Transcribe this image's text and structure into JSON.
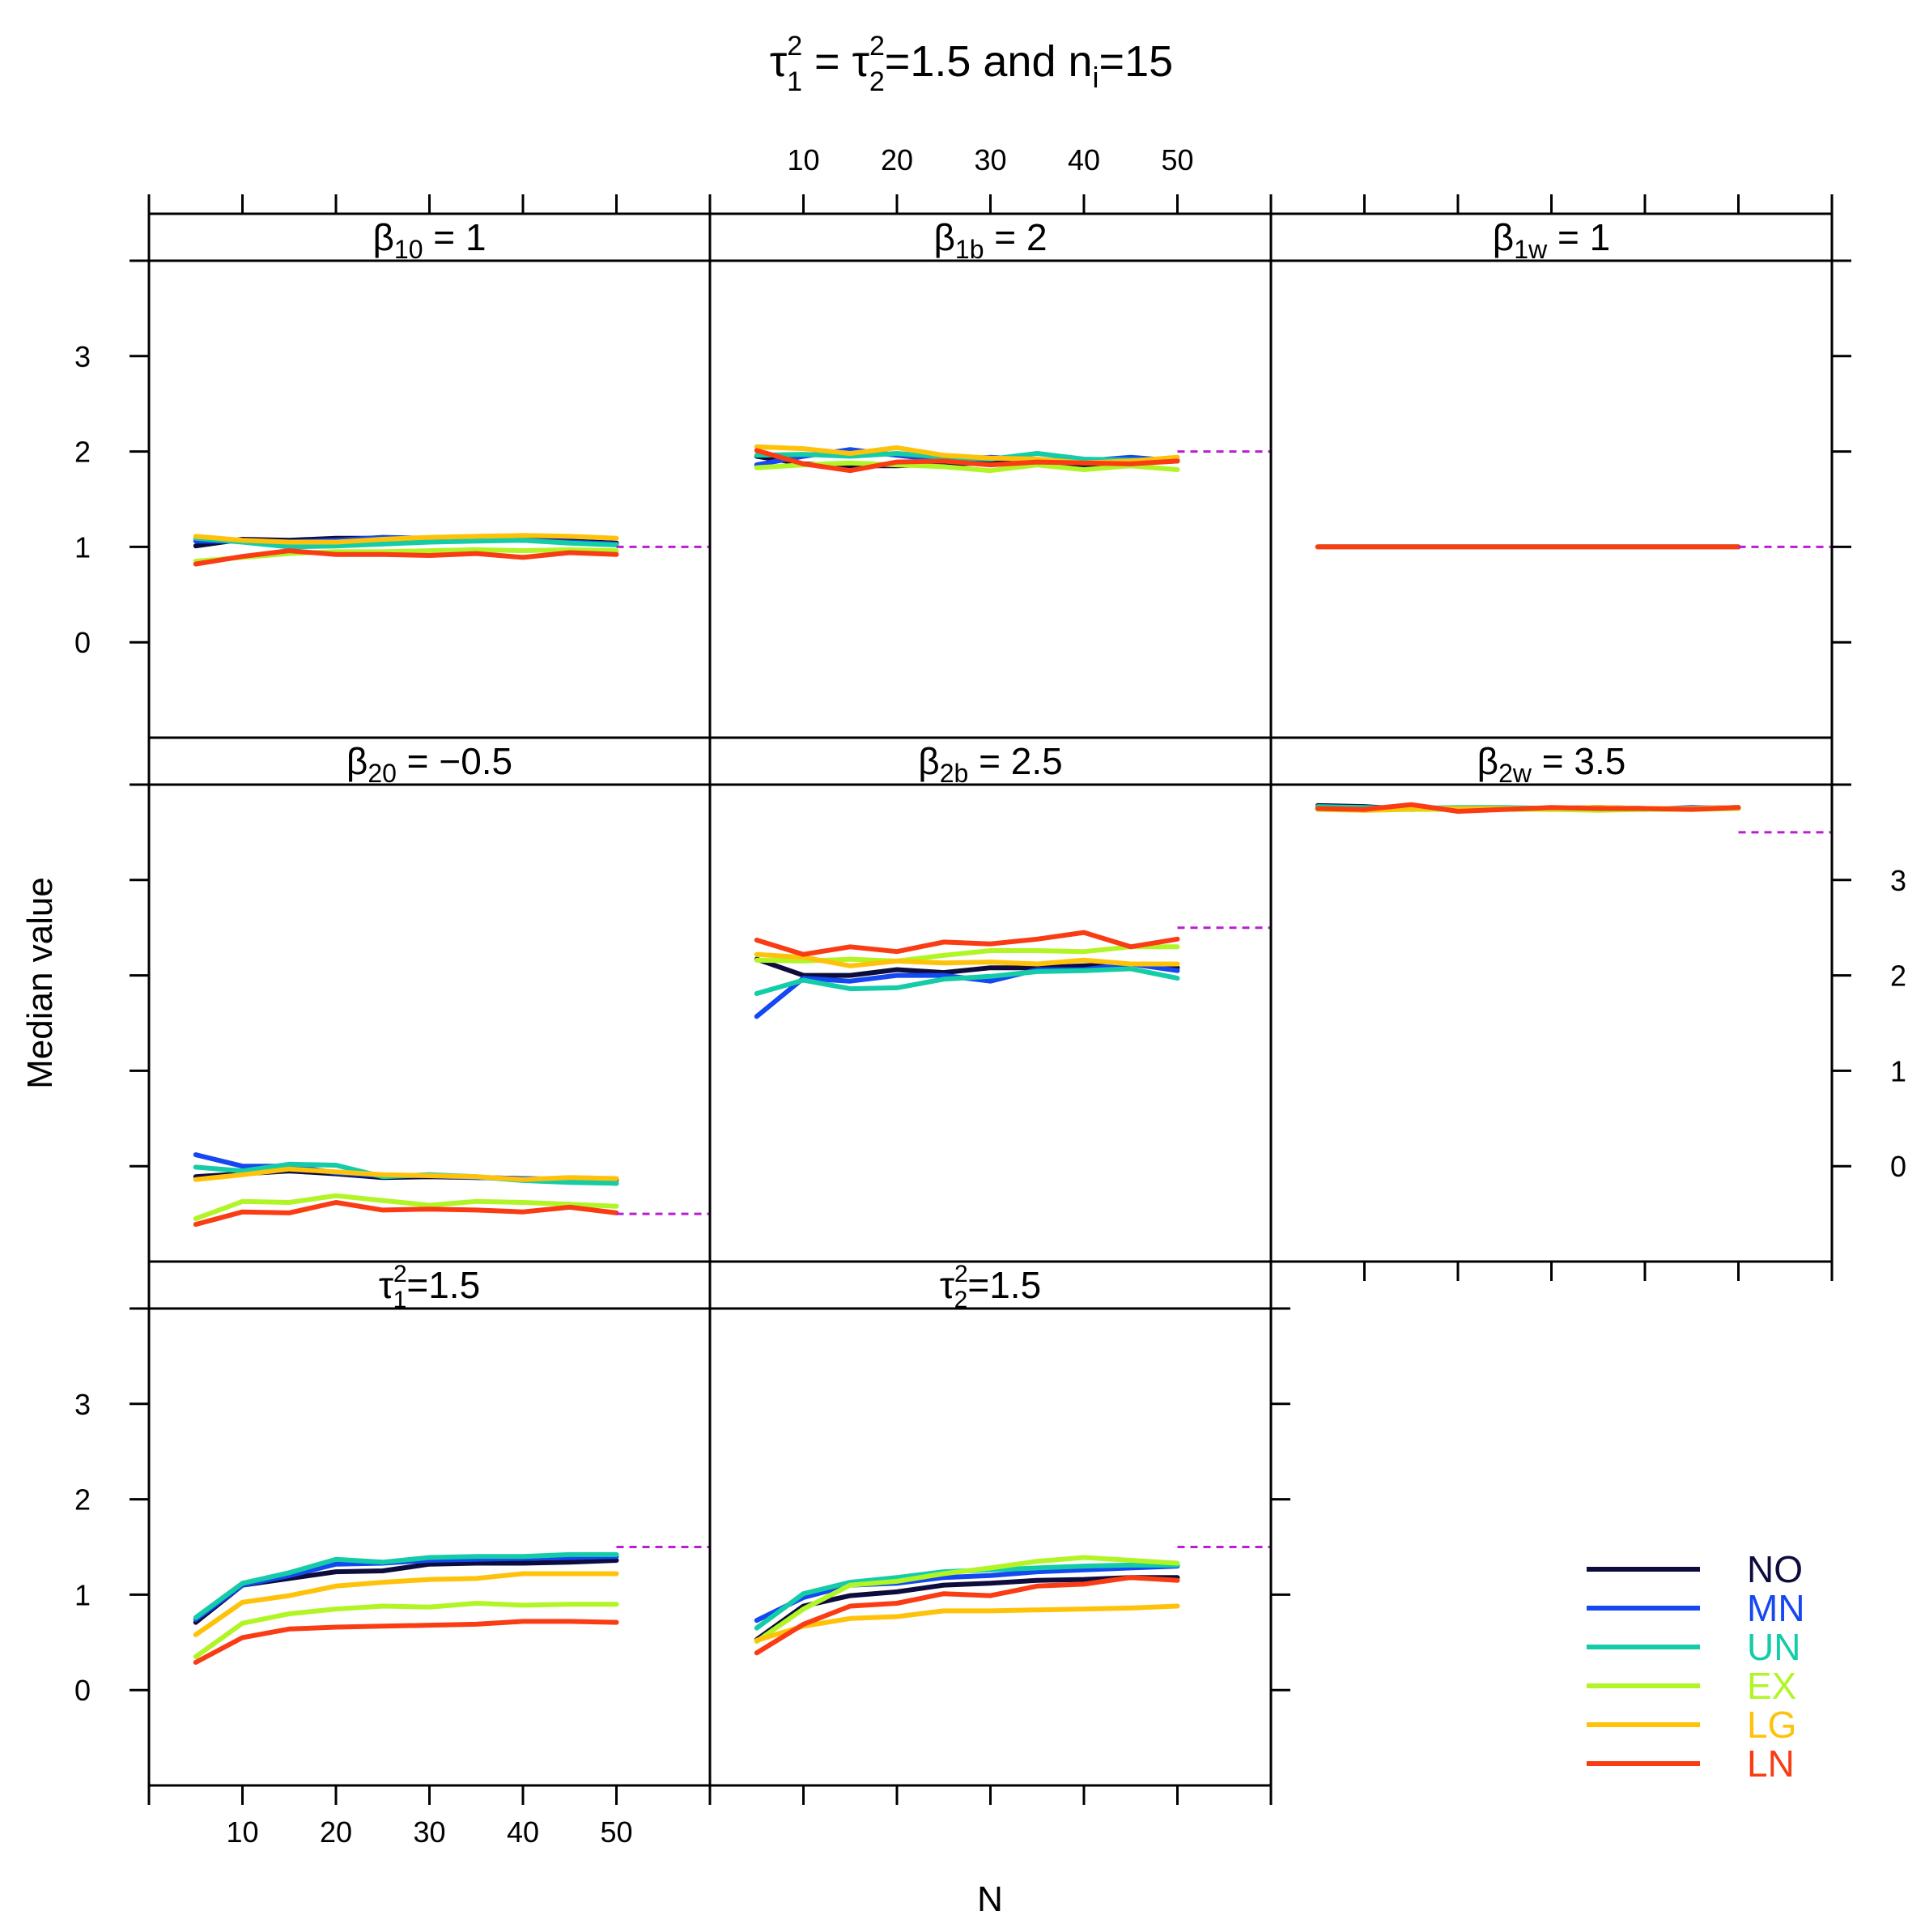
{
  "chart_data": {
    "type": "line",
    "title": {
      "pre1": "τ",
      "sup1": "2",
      "sub1": "1",
      "mid1": " = ",
      "pre2": "τ",
      "sup2": "2",
      "sub2": "2",
      "mid2": "=1.5 and n",
      "sub3": "i",
      "post": "=15"
    },
    "xlabel": "N",
    "ylabel": "Median value",
    "xlim": [
      0,
      60
    ],
    "ylim": [
      -1,
      4
    ],
    "xticks": [
      10,
      20,
      30,
      40,
      50
    ],
    "yticks": [
      0,
      1,
      2,
      3
    ],
    "x": [
      5,
      10,
      15,
      20,
      25,
      30,
      35,
      40,
      45,
      50
    ],
    "reference_line_color": "#b91fd0",
    "legend_position": "bottom-right",
    "legend": [
      {
        "name": "NO",
        "color": "#0d0c3d"
      },
      {
        "name": "MN",
        "color": "#1548f0"
      },
      {
        "name": "UN",
        "color": "#14cca8"
      },
      {
        "name": "EX",
        "color": "#b2f527"
      },
      {
        "name": "LG",
        "color": "#ffc20a"
      },
      {
        "name": "LN",
        "color": "#fa3c14"
      }
    ],
    "panels": [
      {
        "id": "b10",
        "label": {
          "pre": "β",
          "sub": "10",
          "post": " = 1"
        },
        "true_value": 1,
        "series": [
          {
            "name": "NO",
            "values": [
              1.01,
              1.08,
              1.07,
              1.09,
              1.09,
              1.08,
              1.07,
              1.08,
              1.06,
              1.04
            ]
          },
          {
            "name": "MN",
            "values": [
              1.06,
              1.06,
              1.05,
              1.07,
              1.1,
              1.09,
              1.08,
              1.07,
              1.05,
              1.03
            ]
          },
          {
            "name": "UN",
            "values": [
              1.09,
              1.05,
              1.0,
              1.01,
              1.03,
              1.05,
              1.06,
              1.07,
              1.04,
              1.02
            ]
          },
          {
            "name": "EX",
            "values": [
              0.85,
              0.89,
              0.93,
              0.95,
              0.95,
              0.96,
              0.97,
              0.96,
              0.97,
              0.96
            ]
          },
          {
            "name": "LG",
            "values": [
              1.11,
              1.07,
              1.05,
              1.05,
              1.08,
              1.1,
              1.11,
              1.12,
              1.11,
              1.09
            ]
          },
          {
            "name": "LN",
            "values": [
              0.82,
              0.9,
              0.96,
              0.92,
              0.92,
              0.91,
              0.93,
              0.89,
              0.94,
              0.92
            ]
          }
        ]
      },
      {
        "id": "b1b",
        "label": {
          "pre": "β",
          "sub": "1b",
          "post": " = 2"
        },
        "true_value": 2,
        "series": [
          {
            "name": "NO",
            "values": [
              1.95,
              1.87,
              1.85,
              1.85,
              1.87,
              1.88,
              1.9,
              1.86,
              1.88,
              1.9
            ]
          },
          {
            "name": "MN",
            "values": [
              1.86,
              1.95,
              2.02,
              1.96,
              1.91,
              1.94,
              1.91,
              1.9,
              1.94,
              1.9
            ]
          },
          {
            "name": "UN",
            "values": [
              1.96,
              1.97,
              1.95,
              1.98,
              1.94,
              1.92,
              1.98,
              1.92,
              1.91,
              1.91
            ]
          },
          {
            "name": "EX",
            "values": [
              1.83,
              1.86,
              1.88,
              1.86,
              1.84,
              1.8,
              1.86,
              1.81,
              1.85,
              1.81
            ]
          },
          {
            "name": "LG",
            "values": [
              2.05,
              2.03,
              1.98,
              2.04,
              1.96,
              1.93,
              1.92,
              1.88,
              1.9,
              1.94
            ]
          },
          {
            "name": "LN",
            "values": [
              2.01,
              1.87,
              1.8,
              1.89,
              1.9,
              1.86,
              1.89,
              1.88,
              1.87,
              1.9
            ]
          }
        ]
      },
      {
        "id": "b1w",
        "label": {
          "pre": "β",
          "sub": "1w",
          "post": " = 1"
        },
        "true_value": 1,
        "series": [
          {
            "name": "NO",
            "values": [
              1,
              1,
              1,
              1,
              1,
              1,
              1,
              1,
              1,
              1
            ]
          },
          {
            "name": "MN",
            "values": [
              1,
              1,
              1,
              1,
              1,
              1,
              1,
              1,
              1,
              1
            ]
          },
          {
            "name": "UN",
            "values": [
              1,
              1,
              1,
              1,
              1,
              1,
              1,
              1,
              1,
              1
            ]
          },
          {
            "name": "EX",
            "values": [
              1,
              1,
              1,
              1,
              1,
              1,
              1,
              1,
              1,
              1
            ]
          },
          {
            "name": "LG",
            "values": [
              1,
              1,
              1,
              1,
              1,
              1,
              1,
              1,
              1,
              1
            ]
          },
          {
            "name": "LN",
            "values": [
              1,
              1,
              1,
              1,
              1,
              1,
              1,
              1,
              1,
              1
            ]
          }
        ]
      },
      {
        "id": "b20",
        "label": {
          "pre": "β",
          "sub": "20",
          "post": " = −0.5"
        },
        "true_value": -0.5,
        "series": [
          {
            "name": "NO",
            "values": [
              -0.11,
              -0.08,
              -0.05,
              -0.08,
              -0.12,
              -0.11,
              -0.12,
              -0.13,
              -0.14,
              -0.14
            ]
          },
          {
            "name": "MN",
            "values": [
              0.12,
              0.0,
              0.0,
              -0.07,
              -0.1,
              -0.1,
              -0.12,
              -0.13,
              -0.14,
              -0.18
            ]
          },
          {
            "name": "UN",
            "values": [
              -0.01,
              -0.05,
              0.02,
              0.01,
              -0.11,
              -0.09,
              -0.11,
              -0.15,
              -0.17,
              -0.18
            ]
          },
          {
            "name": "EX",
            "values": [
              -0.55,
              -0.37,
              -0.38,
              -0.31,
              -0.36,
              -0.41,
              -0.37,
              -0.38,
              -0.4,
              -0.42
            ]
          },
          {
            "name": "LG",
            "values": [
              -0.14,
              -0.09,
              -0.03,
              -0.06,
              -0.09,
              -0.1,
              -0.11,
              -0.14,
              -0.12,
              -0.13
            ]
          },
          {
            "name": "LN",
            "values": [
              -0.61,
              -0.48,
              -0.49,
              -0.38,
              -0.46,
              -0.45,
              -0.46,
              -0.48,
              -0.43,
              -0.49
            ]
          }
        ]
      },
      {
        "id": "b2b",
        "label": {
          "pre": "β",
          "sub": "2b",
          "post": " = 2.5"
        },
        "true_value": 2.5,
        "series": [
          {
            "name": "NO",
            "values": [
              2.17,
              2.0,
              2.0,
              2.06,
              2.03,
              2.08,
              2.08,
              2.1,
              2.12,
              2.08
            ]
          },
          {
            "name": "MN",
            "values": [
              1.57,
              1.97,
              1.94,
              2.0,
              2.0,
              1.94,
              2.06,
              2.06,
              2.12,
              2.05
            ]
          },
          {
            "name": "UN",
            "values": [
              1.81,
              1.95,
              1.86,
              1.87,
              1.96,
              1.99,
              2.04,
              2.05,
              2.07,
              1.97
            ]
          },
          {
            "name": "EX",
            "values": [
              2.16,
              2.15,
              2.17,
              2.15,
              2.21,
              2.26,
              2.26,
              2.25,
              2.3,
              2.3
            ]
          },
          {
            "name": "LG",
            "values": [
              2.22,
              2.19,
              2.1,
              2.15,
              2.13,
              2.14,
              2.12,
              2.16,
              2.12,
              2.12
            ]
          },
          {
            "name": "LN",
            "values": [
              2.37,
              2.22,
              2.3,
              2.25,
              2.35,
              2.33,
              2.38,
              2.45,
              2.3,
              2.38
            ]
          }
        ]
      },
      {
        "id": "b2w",
        "label": {
          "pre": "β",
          "sub": "2w",
          "post": " = 3.5"
        },
        "true_value": 3.5,
        "series": [
          {
            "name": "NO",
            "values": [
              3.78,
              3.77,
              3.74,
              3.75,
              3.75,
              3.75,
              3.76,
              3.75,
              3.75,
              3.76
            ]
          },
          {
            "name": "MN",
            "values": [
              3.76,
              3.75,
              3.77,
              3.74,
              3.75,
              3.74,
              3.75,
              3.74,
              3.76,
              3.75
            ]
          },
          {
            "name": "UN",
            "values": [
              3.77,
              3.76,
              3.75,
              3.76,
              3.76,
              3.75,
              3.76,
              3.75,
              3.75,
              3.76
            ]
          },
          {
            "name": "EX",
            "values": [
              3.74,
              3.73,
              3.74,
              3.74,
              3.74,
              3.74,
              3.73,
              3.74,
              3.74,
              3.75
            ]
          },
          {
            "name": "LG",
            "values": [
              3.75,
              3.73,
              3.75,
              3.75,
              3.75,
              3.75,
              3.76,
              3.75,
              3.75,
              3.76
            ]
          },
          {
            "name": "LN",
            "values": [
              3.75,
              3.74,
              3.79,
              3.72,
              3.74,
              3.76,
              3.75,
              3.75,
              3.74,
              3.76
            ]
          }
        ]
      },
      {
        "id": "t1",
        "label": {
          "pre": "τ",
          "sup": "2",
          "sub": "1",
          "post": "=1.5"
        },
        "true_value": 1.5,
        "series": [
          {
            "name": "NO",
            "values": [
              0.71,
              1.1,
              1.17,
              1.24,
              1.25,
              1.32,
              1.33,
              1.33,
              1.34,
              1.36
            ]
          },
          {
            "name": "MN",
            "values": [
              0.74,
              1.1,
              1.2,
              1.32,
              1.33,
              1.36,
              1.37,
              1.38,
              1.39,
              1.4
            ]
          },
          {
            "name": "UN",
            "values": [
              0.76,
              1.12,
              1.23,
              1.37,
              1.34,
              1.39,
              1.4,
              1.4,
              1.42,
              1.42
            ]
          },
          {
            "name": "EX",
            "values": [
              0.35,
              0.7,
              0.8,
              0.85,
              0.88,
              0.87,
              0.91,
              0.89,
              0.9,
              0.9
            ]
          },
          {
            "name": "LG",
            "values": [
              0.58,
              0.92,
              0.99,
              1.09,
              1.13,
              1.16,
              1.17,
              1.22,
              1.22,
              1.22
            ]
          },
          {
            "name": "LN",
            "values": [
              0.29,
              0.55,
              0.64,
              0.66,
              0.67,
              0.68,
              0.69,
              0.72,
              0.72,
              0.71
            ]
          }
        ]
      },
      {
        "id": "t2",
        "label": {
          "pre": "τ",
          "sup": "2",
          "sub": "2",
          "post": "=1.5"
        },
        "true_value": 1.5,
        "series": [
          {
            "name": "NO",
            "values": [
              0.53,
              0.88,
              0.99,
              1.03,
              1.1,
              1.12,
              1.15,
              1.16,
              1.18,
              1.18
            ]
          },
          {
            "name": "MN",
            "values": [
              0.73,
              0.97,
              1.1,
              1.12,
              1.18,
              1.2,
              1.24,
              1.26,
              1.28,
              1.3
            ]
          },
          {
            "name": "UN",
            "values": [
              0.65,
              1.01,
              1.13,
              1.18,
              1.24,
              1.26,
              1.28,
              1.3,
              1.31,
              1.31
            ]
          },
          {
            "name": "EX",
            "values": [
              0.51,
              0.85,
              1.1,
              1.14,
              1.22,
              1.28,
              1.35,
              1.39,
              1.36,
              1.33
            ]
          },
          {
            "name": "LG",
            "values": [
              0.52,
              0.67,
              0.75,
              0.77,
              0.83,
              0.83,
              0.84,
              0.85,
              0.86,
              0.88
            ]
          },
          {
            "name": "LN",
            "values": [
              0.39,
              0.69,
              0.88,
              0.91,
              1.01,
              0.99,
              1.09,
              1.11,
              1.18,
              1.15
            ]
          }
        ]
      }
    ]
  }
}
